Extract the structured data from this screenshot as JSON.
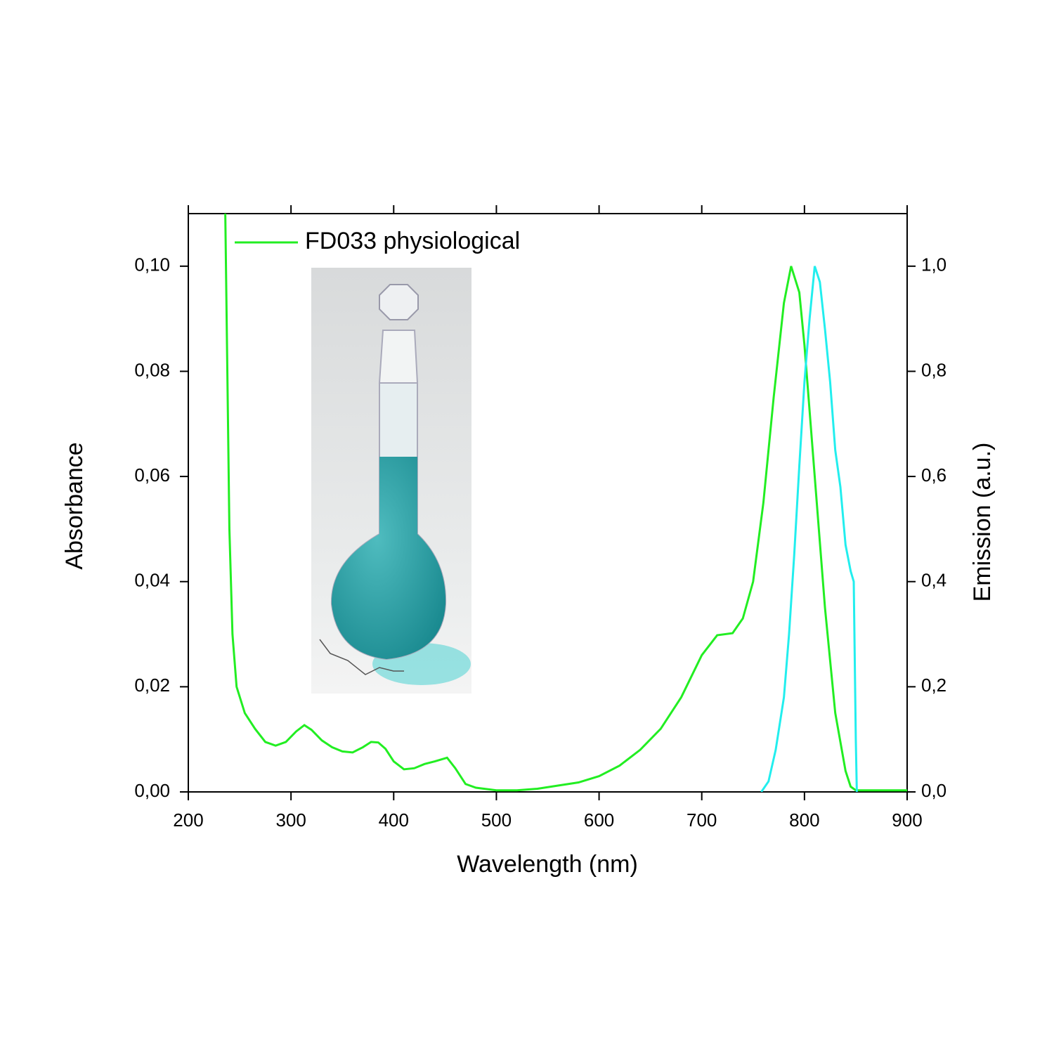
{
  "chart_data": {
    "type": "line",
    "x_label": "Wavelength (nm)",
    "y_label": "Absorbance",
    "y2_label": "Emission (a.u.)",
    "xlim": [
      200,
      900
    ],
    "xticks": [
      200,
      300,
      400,
      500,
      600,
      700,
      800,
      900
    ],
    "ylim": [
      0,
      0.11
    ],
    "yticks": [
      {
        "value": 0,
        "label": "0,00"
      },
      {
        "value": 0.02,
        "label": "0,02"
      },
      {
        "value": 0.04,
        "label": "0,04"
      },
      {
        "value": 0.06,
        "label": "0,06"
      },
      {
        "value": 0.08,
        "label": "0,08"
      },
      {
        "value": 0.1,
        "label": "0,10"
      }
    ],
    "y2lim": [
      0,
      1.1
    ],
    "y2ticks": [
      {
        "value": 0,
        "label": "0,0"
      },
      {
        "value": 0.2,
        "label": "0,2"
      },
      {
        "value": 0.4,
        "label": "0,4"
      },
      {
        "value": 0.6,
        "label": "0,6"
      },
      {
        "value": 0.8,
        "label": "0,8"
      },
      {
        "value": 1.0,
        "label": "1,0"
      }
    ],
    "legend": "upper left",
    "series": [
      {
        "name": "FD033 physiological",
        "color": "#22ee22",
        "x": [
          236,
          238,
          240,
          243,
          247,
          255,
          265,
          275,
          285,
          295,
          305,
          313,
          320,
          330,
          340,
          350,
          360,
          370,
          378,
          385,
          392,
          400,
          410,
          420,
          430,
          440,
          452,
          460,
          470,
          480,
          500,
          520,
          540,
          560,
          580,
          600,
          620,
          640,
          660,
          680,
          700,
          715,
          730,
          740,
          750,
          760,
          770,
          780,
          787,
          795,
          800,
          810,
          820,
          830,
          840,
          845,
          850,
          860,
          900
        ],
        "values": [
          0.11,
          0.08,
          0.05,
          0.03,
          0.02,
          0.015,
          0.012,
          0.0095,
          0.0088,
          0.0095,
          0.0115,
          0.0127,
          0.0118,
          0.0098,
          0.0085,
          0.0077,
          0.0075,
          0.0085,
          0.0095,
          0.0094,
          0.0082,
          0.0058,
          0.0043,
          0.0045,
          0.0053,
          0.0058,
          0.0065,
          0.0045,
          0.0015,
          0.0008,
          0.0003,
          0.0003,
          0.0006,
          0.0012,
          0.0018,
          0.003,
          0.005,
          0.008,
          0.012,
          0.018,
          0.026,
          0.0298,
          0.0302,
          0.033,
          0.04,
          0.055,
          0.075,
          0.093,
          0.1,
          0.095,
          0.085,
          0.06,
          0.035,
          0.015,
          0.004,
          0.001,
          0.0003,
          0.0003,
          0.0003
        ]
      },
      {
        "color": "#22eeee",
        "axis": "y2",
        "x": [
          758,
          765,
          772,
          780,
          785,
          790,
          795,
          800,
          805,
          810,
          815,
          820,
          825,
          830,
          835,
          840,
          845,
          848,
          850,
          851
        ],
        "values": [
          0,
          0.02,
          0.08,
          0.18,
          0.3,
          0.45,
          0.62,
          0.78,
          0.9,
          1.0,
          0.97,
          0.88,
          0.78,
          0.65,
          0.58,
          0.47,
          0.42,
          0.4,
          0.1,
          0
        ]
      }
    ]
  }
}
